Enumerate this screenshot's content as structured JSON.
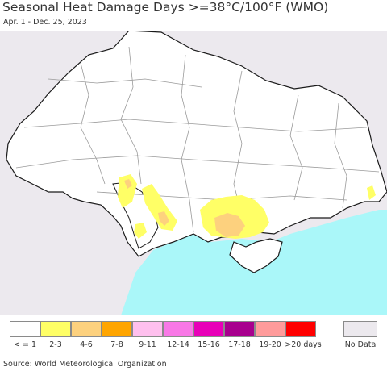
{
  "header": {
    "title": "Seasonal Heat Damage Days >=38°C/100°F (WMO)",
    "subtitle": "Apr. 1 - Dec. 25, 2023"
  },
  "map": {
    "land_color": "#ffffff",
    "outside_color": "#ece9ee",
    "sea_color": "#aaf7f9",
    "border_color": "#1a1a1a",
    "region_border_color": "#9a9a9a"
  },
  "legend": {
    "items": [
      {
        "label": "< = 1",
        "color": "#ffffff"
      },
      {
        "label": "2-3",
        "color": "#ffff66"
      },
      {
        "label": "4-6",
        "color": "#fdd17e"
      },
      {
        "label": "7-8",
        "color": "#ffa500"
      },
      {
        "label": "9-11",
        "color": "#ffc0ee"
      },
      {
        "label": "12-14",
        "color": "#f878e6"
      },
      {
        "label": "15-16",
        "color": "#e800b8"
      },
      {
        "label": "17-18",
        "color": "#a8008e"
      },
      {
        "label": "19-20",
        "color": "#ff9b9b"
      },
      {
        "label": ">20 days",
        "color": "#ff0000"
      }
    ],
    "no_data": {
      "label": "No Data",
      "color": "#ece9ee"
    }
  },
  "footer": {
    "source": "Source: World Meteorological Organization"
  }
}
